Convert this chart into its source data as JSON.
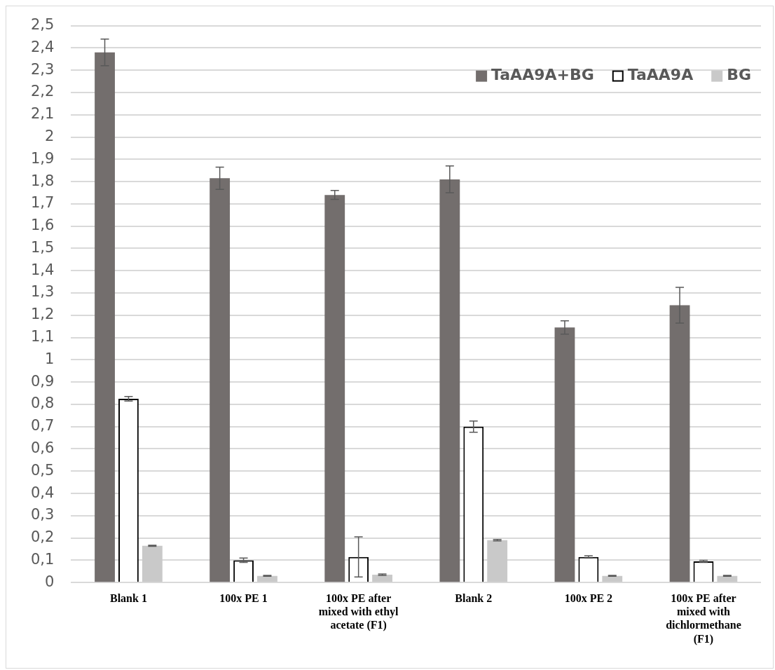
{
  "chart_data": {
    "type": "bar",
    "categories": [
      "Blank 1",
      "100x PE 1",
      "100x PE after mixed with ethyl acetate (F1)",
      "Blank 2",
      "100x PE 2",
      "100x PE after mixed with dichlormethane (F1)"
    ],
    "series": [
      {
        "name": "TaAA9A+BG",
        "color": "#736e6d",
        "values": [
          2.38,
          1.815,
          1.74,
          1.81,
          1.145,
          1.245
        ],
        "errors": [
          0.06,
          0.05,
          0.02,
          0.06,
          0.03,
          0.08
        ]
      },
      {
        "name": "TaAA9A",
        "color": "#ffffff",
        "values": [
          0.825,
          0.1,
          0.115,
          0.7,
          0.115,
          0.095
        ],
        "errors": [
          0.01,
          0.01,
          0.09,
          0.025,
          0.005,
          0.005
        ]
      },
      {
        "name": "BG",
        "color": "#c9c9c9",
        "values": [
          0.165,
          0.03,
          0.035,
          0.19,
          0.03,
          0.03
        ],
        "errors": [
          0.002,
          0.002,
          0.003,
          0.003,
          0.002,
          0.002
        ]
      }
    ],
    "ylim": [
      0,
      2.5
    ],
    "yticks": [
      0,
      {
        "value": 0.1,
        "label": "0,1"
      },
      {
        "value": 0.2,
        "label": "0,2"
      },
      {
        "value": 0.3,
        "label": "0,3"
      },
      {
        "value": 0.4,
        "label": "0,4"
      },
      {
        "value": 0.5,
        "label": "0,5"
      },
      {
        "value": 0.6,
        "label": "0,6"
      },
      {
        "value": 0.7,
        "label": "0,7"
      },
      {
        "value": 0.8,
        "label": "0,8"
      },
      {
        "value": 0.9,
        "label": "0,9"
      },
      1,
      {
        "value": 1.1,
        "label": "1,1"
      },
      {
        "value": 1.2,
        "label": "1,2"
      },
      {
        "value": 1.3,
        "label": "1,3"
      },
      {
        "value": 1.4,
        "label": "1,4"
      },
      {
        "value": 1.5,
        "label": "1,5"
      },
      {
        "value": 1.6,
        "label": "1,6"
      },
      {
        "value": 1.7,
        "label": "1,7"
      },
      {
        "value": 1.8,
        "label": "1,8"
      },
      {
        "value": 1.9,
        "label": "1,9"
      },
      2,
      {
        "value": 2.1,
        "label": "2,1"
      },
      {
        "value": 2.2,
        "label": "2,2"
      },
      {
        "value": 2.3,
        "label": "2,3"
      },
      {
        "value": 2.4,
        "label": "2,4"
      },
      {
        "value": 2.5,
        "label": "2,5"
      }
    ],
    "grid": "y",
    "legend": "top right"
  }
}
